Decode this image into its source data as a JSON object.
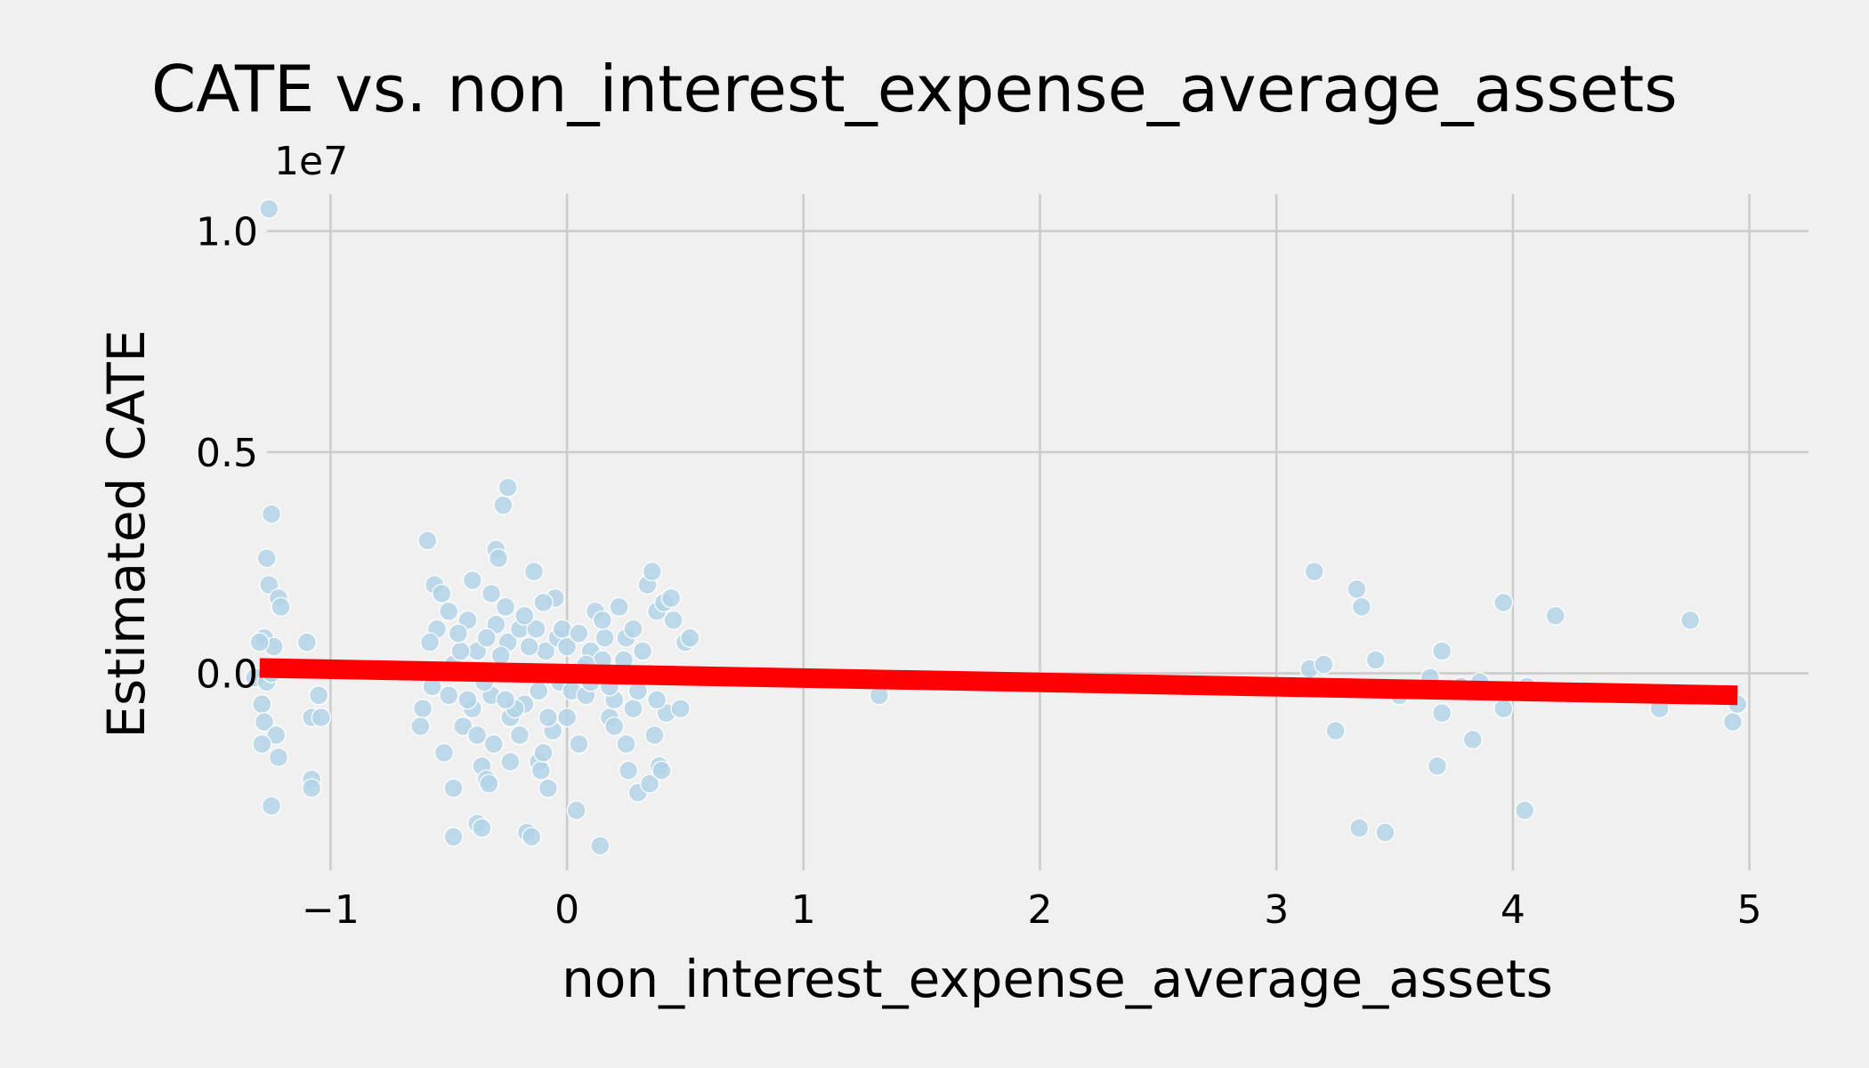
{
  "chart_data": {
    "type": "scatter",
    "title": "CATE vs. non_interest_expense_average_assets",
    "xlabel": "non_interest_expense_average_assets",
    "ylabel": "Estimated CATE",
    "y_multiplier": "1e7",
    "xlim": [
      -1.6,
      5.25
    ],
    "ylim": [
      -0.46,
      1.12
    ],
    "xticks": [
      -1,
      0,
      1,
      2,
      3,
      4,
      5
    ],
    "xtick_labels": [
      "−1",
      "0",
      "1",
      "2",
      "3",
      "4",
      "5"
    ],
    "yticks": [
      0.0,
      0.5,
      1.0
    ],
    "ytick_labels": [
      "0.0",
      "0.5",
      "1.0"
    ],
    "grid": true,
    "legend": "none",
    "colors": {
      "background": "#f0f0f0",
      "points": "#b3d4e8",
      "fit_line": "#ff0000",
      "grid": "#cbcbcb"
    },
    "fit_line": {
      "x": [
        -1.3,
        4.95
      ],
      "y": [
        0.012,
        -0.05
      ]
    },
    "series": [
      {
        "values": [
          [
            -1.26,
            1.05
          ],
          [
            -1.25,
            0.36
          ],
          [
            -1.27,
            0.26
          ],
          [
            -1.26,
            0.2
          ],
          [
            -1.22,
            0.17
          ],
          [
            -1.21,
            0.15
          ],
          [
            -1.28,
            0.08
          ],
          [
            -1.24,
            0.06
          ],
          [
            -1.3,
            0.07
          ],
          [
            -1.32,
            -0.01
          ],
          [
            -1.27,
            -0.02
          ],
          [
            -1.25,
            0.0
          ],
          [
            -1.29,
            -0.07
          ],
          [
            -1.28,
            -0.11
          ],
          [
            -1.23,
            -0.14
          ],
          [
            -1.29,
            -0.16
          ],
          [
            -1.22,
            -0.19
          ],
          [
            -1.25,
            -0.3
          ],
          [
            -1.1,
            0.07
          ],
          [
            -1.05,
            -0.05
          ],
          [
            -1.08,
            -0.1
          ],
          [
            -1.04,
            -0.1
          ],
          [
            -1.08,
            -0.24
          ],
          [
            -1.08,
            -0.26
          ],
          [
            -0.59,
            0.3
          ],
          [
            -0.56,
            0.2
          ],
          [
            -0.53,
            0.18
          ],
          [
            -0.55,
            0.1
          ],
          [
            -0.58,
            0.07
          ],
          [
            -0.57,
            -0.03
          ],
          [
            -0.61,
            -0.08
          ],
          [
            -0.62,
            -0.12
          ],
          [
            -0.5,
            -0.05
          ],
          [
            -0.48,
            0.02
          ],
          [
            -0.48,
            -0.26
          ],
          [
            -0.48,
            -0.37
          ],
          [
            -0.44,
            -0.12
          ],
          [
            -0.42,
            0.12
          ],
          [
            -0.4,
            0.21
          ],
          [
            -0.38,
            0.05
          ],
          [
            -0.38,
            -0.34
          ],
          [
            -0.36,
            -0.35
          ],
          [
            -0.36,
            -0.21
          ],
          [
            -0.34,
            -0.24
          ],
          [
            -0.33,
            -0.25
          ],
          [
            -0.32,
            0.18
          ],
          [
            -0.32,
            -0.05
          ],
          [
            -0.31,
            -0.16
          ],
          [
            -0.3,
            0.28
          ],
          [
            -0.29,
            0.26
          ],
          [
            -0.27,
            0.38
          ],
          [
            -0.25,
            0.42
          ],
          [
            -0.26,
            0.15
          ],
          [
            -0.25,
            0.07
          ],
          [
            -0.24,
            -0.1
          ],
          [
            -0.24,
            -0.2
          ],
          [
            -0.22,
            0.0
          ],
          [
            -0.2,
            0.1
          ],
          [
            -0.18,
            -0.07
          ],
          [
            -0.17,
            -0.36
          ],
          [
            -0.15,
            -0.37
          ],
          [
            -0.14,
            0.23
          ],
          [
            -0.13,
            0.1
          ],
          [
            -0.12,
            -0.2
          ],
          [
            -0.11,
            -0.22
          ],
          [
            -0.1,
            -0.18
          ],
          [
            -0.09,
            0.05
          ],
          [
            -0.08,
            -0.26
          ],
          [
            -0.05,
            0.17
          ],
          [
            -0.04,
            0.08
          ],
          [
            -0.03,
            -0.02
          ],
          [
            -0.02,
            0.1
          ],
          [
            0.0,
            0.06
          ],
          [
            0.02,
            -0.04
          ],
          [
            0.04,
            -0.31
          ],
          [
            0.06,
            0.01
          ],
          [
            0.08,
            -0.05
          ],
          [
            0.1,
            0.05
          ],
          [
            0.12,
            0.14
          ],
          [
            0.14,
            -0.39
          ],
          [
            0.16,
            0.08
          ],
          [
            0.18,
            -0.1
          ],
          [
            0.2,
            -0.12
          ],
          [
            0.22,
            0.15
          ],
          [
            0.24,
            0.03
          ],
          [
            0.26,
            -0.22
          ],
          [
            0.28,
            -0.08
          ],
          [
            0.3,
            -0.27
          ],
          [
            0.32,
            0.05
          ],
          [
            0.34,
            0.2
          ],
          [
            0.35,
            -0.25
          ],
          [
            0.36,
            0.23
          ],
          [
            0.37,
            -0.14
          ],
          [
            0.38,
            0.14
          ],
          [
            0.39,
            -0.21
          ],
          [
            0.4,
            -0.22
          ],
          [
            0.41,
            0.16
          ],
          [
            0.42,
            -0.09
          ],
          [
            0.44,
            0.17
          ],
          [
            0.45,
            0.12
          ],
          [
            0.48,
            -0.08
          ],
          [
            0.5,
            0.07
          ],
          [
            0.52,
            0.08
          ],
          [
            -0.45,
            0.05
          ],
          [
            -0.35,
            -0.02
          ],
          [
            -0.28,
            0.04
          ],
          [
            -0.22,
            -0.08
          ],
          [
            -0.18,
            0.13
          ],
          [
            -0.12,
            -0.04
          ],
          [
            -0.06,
            -0.13
          ],
          [
            0.0,
            -0.1
          ],
          [
            0.05,
            0.09
          ],
          [
            0.1,
            -0.02
          ],
          [
            0.15,
            0.03
          ],
          [
            0.2,
            -0.06
          ],
          [
            0.25,
            0.08
          ],
          [
            0.3,
            -0.04
          ],
          [
            -0.5,
            0.14
          ],
          [
            -0.4,
            -0.08
          ],
          [
            -0.3,
            0.11
          ],
          [
            -0.2,
            -0.14
          ],
          [
            -0.1,
            0.16
          ],
          [
            0.05,
            -0.16
          ],
          [
            0.15,
            0.12
          ],
          [
            0.25,
            -0.16
          ],
          [
            0.35,
            0.0
          ],
          [
            -0.52,
            -0.18
          ],
          [
            -0.46,
            0.09
          ],
          [
            -0.42,
            -0.06
          ],
          [
            -0.38,
            -0.14
          ],
          [
            -0.34,
            0.08
          ],
          [
            -0.26,
            -0.06
          ],
          [
            -0.16,
            0.06
          ],
          [
            -0.08,
            -0.1
          ],
          [
            0.08,
            0.02
          ],
          [
            0.18,
            -0.03
          ],
          [
            0.28,
            0.1
          ],
          [
            0.38,
            -0.06
          ],
          [
            1.32,
            -0.05
          ],
          [
            3.14,
            0.01
          ],
          [
            3.16,
            0.23
          ],
          [
            3.2,
            0.02
          ],
          [
            3.25,
            -0.13
          ],
          [
            3.34,
            0.19
          ],
          [
            3.36,
            0.15
          ],
          [
            3.35,
            -0.35
          ],
          [
            3.42,
            0.03
          ],
          [
            3.46,
            -0.36
          ],
          [
            3.52,
            -0.05
          ],
          [
            3.65,
            -0.01
          ],
          [
            3.68,
            -0.21
          ],
          [
            3.7,
            0.05
          ],
          [
            3.7,
            -0.09
          ],
          [
            3.78,
            -0.03
          ],
          [
            3.83,
            -0.15
          ],
          [
            3.86,
            -0.02
          ],
          [
            3.96,
            0.16
          ],
          [
            3.96,
            -0.08
          ],
          [
            4.05,
            -0.31
          ],
          [
            4.06,
            -0.03
          ],
          [
            4.18,
            0.13
          ],
          [
            4.62,
            -0.08
          ],
          [
            4.75,
            0.12
          ],
          [
            4.93,
            -0.11
          ],
          [
            4.95,
            -0.07
          ]
        ]
      }
    ]
  }
}
